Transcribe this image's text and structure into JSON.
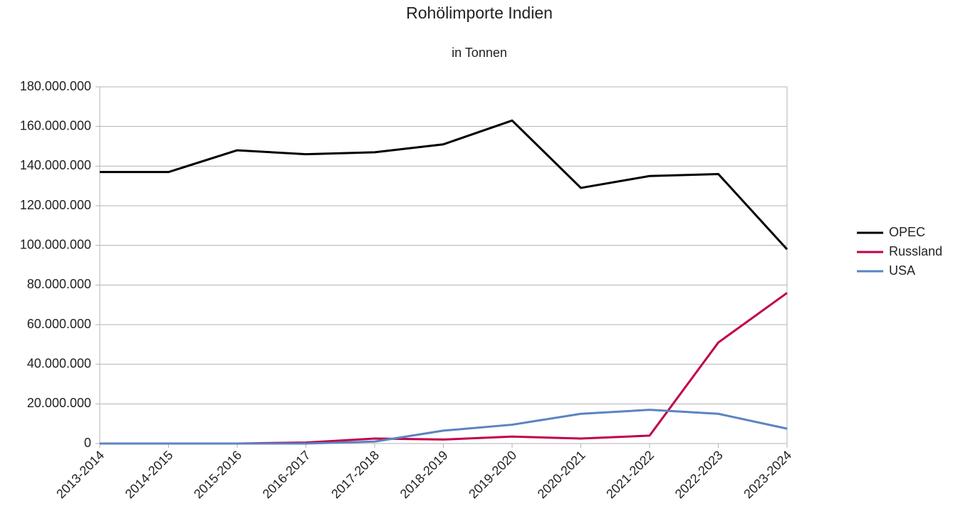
{
  "chart_data": {
    "type": "line",
    "title": "Rohölimporte Indien",
    "subtitle": "in Tonnen",
    "categories": [
      "2013-2014",
      "2014-2015",
      "2015-2016",
      "2016-2017",
      "2017-2018",
      "2018-2019",
      "2019-2020",
      "2020-2021",
      "2021-2022",
      "2022-2023",
      "2023-2024"
    ],
    "series": [
      {
        "name": "OPEC",
        "color": "#000000",
        "values": [
          137000000,
          137000000,
          148000000,
          146000000,
          147000000,
          151000000,
          163000000,
          129000000,
          135000000,
          136000000,
          98000000
        ]
      },
      {
        "name": "Russland",
        "color": "#c0004e",
        "values": [
          0,
          0,
          0,
          500000,
          2500000,
          2000000,
          3500000,
          2500000,
          4000000,
          51000000,
          76000000
        ]
      },
      {
        "name": "USA",
        "color": "#5a84c0",
        "values": [
          0,
          0,
          0,
          0,
          1000000,
          6500000,
          9500000,
          15000000,
          17000000,
          15000000,
          7500000
        ]
      }
    ],
    "ylim": [
      0,
      180000000
    ],
    "yticks": [
      0,
      {
        "value": 20000000,
        "label": "20.000.000"
      },
      {
        "value": 40000000,
        "label": "40.000.000"
      },
      {
        "value": 60000000,
        "label": "60.000.000"
      },
      {
        "value": 80000000,
        "label": "80.000.000"
      },
      {
        "value": 100000000,
        "label": "100.000.000"
      },
      {
        "value": 120000000,
        "label": "120.000.000"
      },
      {
        "value": 140000000,
        "label": "140.000.000"
      },
      {
        "value": 160000000,
        "label": "160.000.000"
      },
      {
        "value": 180000000,
        "label": "180.000.000"
      }
    ],
    "grid": true,
    "legend": "right"
  }
}
